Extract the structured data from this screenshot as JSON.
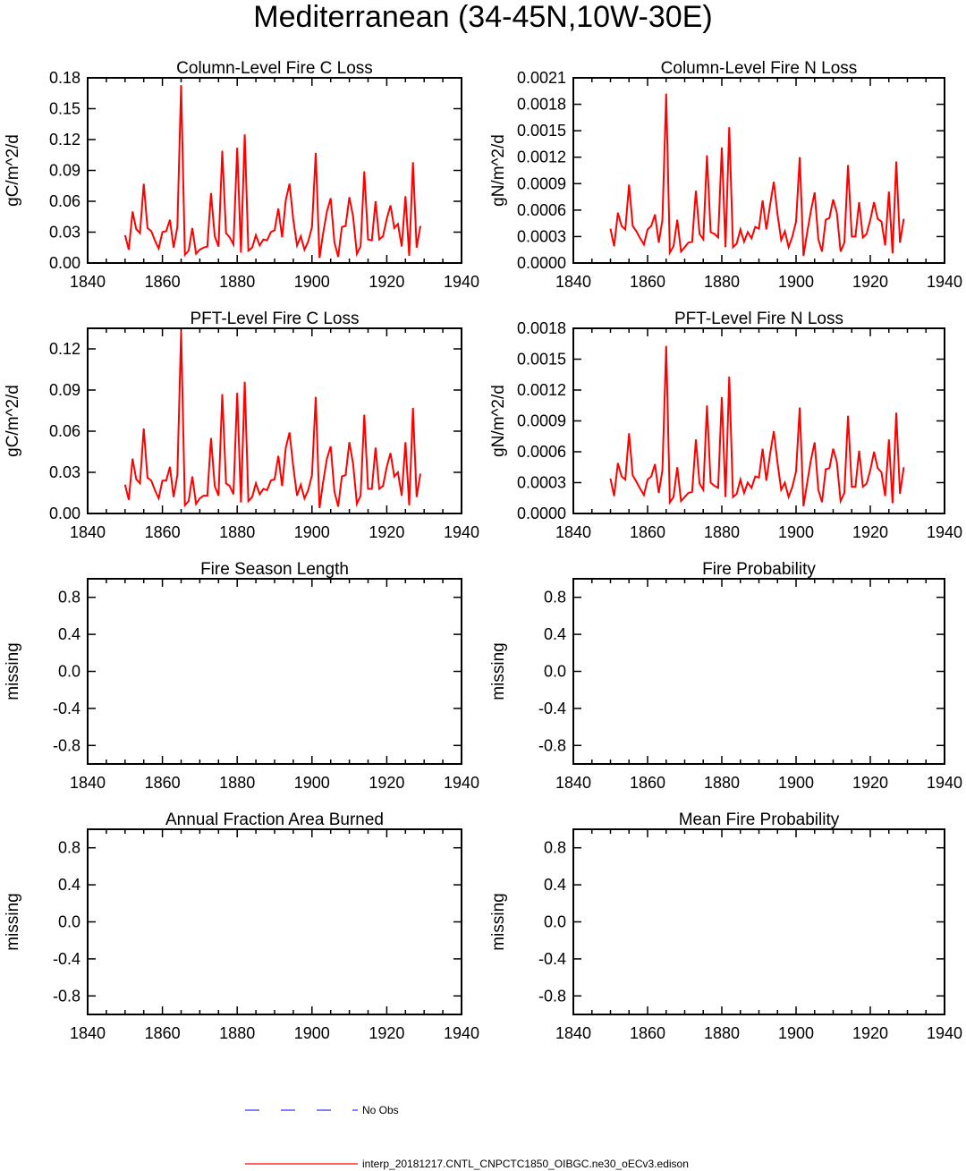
{
  "figure": {
    "title": "Mediterranean (34-45N,10W-30E)"
  },
  "legend": {
    "entries": [
      {
        "label": "No Obs",
        "color": "#3333ff",
        "style": "dashed"
      },
      {
        "label": "interp_20181217.CNTL_CNPCTC1850_OIBGC.ne30_oECv3.edison",
        "color": "#ff0000",
        "style": "solid"
      }
    ]
  },
  "chart_data": [
    {
      "type": "line",
      "title": "Column-Level Fire C Loss",
      "ylabel": "gC/m^2/d",
      "xlim": [
        1840,
        1940
      ],
      "xticks": [
        "1840",
        "1860",
        "1880",
        "1900",
        "1920",
        "1940"
      ],
      "ylim": [
        0,
        0.18
      ],
      "yticks": [
        "0.00",
        "0.03",
        "0.06",
        "0.09",
        "0.12",
        "0.15",
        "0.18"
      ],
      "series": [
        {
          "color": "#ff0000",
          "x": [
            1850,
            1851,
            1852,
            1853,
            1854,
            1855,
            1856,
            1857,
            1858,
            1859,
            1860,
            1861,
            1862,
            1863,
            1864,
            1865,
            1866,
            1867,
            1868,
            1869,
            1870,
            1871,
            1872,
            1873,
            1874,
            1875,
            1876,
            1877,
            1878,
            1879,
            1880,
            1881,
            1882,
            1883,
            1884,
            1885,
            1886,
            1887,
            1888,
            1889,
            1890,
            1891,
            1892,
            1893,
            1894,
            1895,
            1896,
            1897,
            1898,
            1899,
            1900,
            1901,
            1902,
            1903,
            1904,
            1905,
            1906,
            1907,
            1908,
            1909,
            1910,
            1911,
            1912,
            1913,
            1914,
            1915,
            1916,
            1917,
            1918,
            1919,
            1920,
            1921,
            1922,
            1923,
            1924,
            1925,
            1926,
            1927,
            1928,
            1929
          ],
          "y": [
            0.027,
            0.013,
            0.05,
            0.033,
            0.029,
            0.077,
            0.034,
            0.031,
            0.022,
            0.014,
            0.03,
            0.031,
            0.042,
            0.015,
            0.035,
            0.173,
            0.008,
            0.012,
            0.034,
            0.009,
            0.013,
            0.015,
            0.016,
            0.068,
            0.026,
            0.016,
            0.109,
            0.029,
            0.025,
            0.018,
            0.112,
            0.01,
            0.125,
            0.012,
            0.015,
            0.027,
            0.017,
            0.023,
            0.022,
            0.03,
            0.032,
            0.053,
            0.025,
            0.061,
            0.077,
            0.042,
            0.017,
            0.026,
            0.013,
            0.021,
            0.035,
            0.107,
            0.005,
            0.029,
            0.05,
            0.063,
            0.02,
            0.006,
            0.035,
            0.036,
            0.064,
            0.045,
            0.009,
            0.016,
            0.089,
            0.023,
            0.022,
            0.06,
            0.023,
            0.026,
            0.043,
            0.056,
            0.034,
            0.038,
            0.016,
            0.065,
            0.007,
            0.098,
            0.015,
            0.036
          ]
        }
      ]
    },
    {
      "type": "line",
      "title": "Column-Level Fire N Loss",
      "ylabel": "gN/m^2/d",
      "xlim": [
        1840,
        1940
      ],
      "xticks": [
        "1840",
        "1860",
        "1880",
        "1900",
        "1920",
        "1940"
      ],
      "ylim": [
        0,
        0.0021
      ],
      "yticks": [
        "0.0000",
        "0.0003",
        "0.0006",
        "0.0009",
        "0.0012",
        "0.0015",
        "0.0018",
        "0.0021"
      ],
      "series": [
        {
          "color": "#ff0000",
          "x": [
            1850,
            1851,
            1852,
            1853,
            1854,
            1855,
            1856,
            1857,
            1858,
            1859,
            1860,
            1861,
            1862,
            1863,
            1864,
            1865,
            1866,
            1867,
            1868,
            1869,
            1870,
            1871,
            1872,
            1873,
            1874,
            1875,
            1876,
            1877,
            1878,
            1879,
            1880,
            1881,
            1882,
            1883,
            1884,
            1885,
            1886,
            1887,
            1888,
            1889,
            1890,
            1891,
            1892,
            1893,
            1894,
            1895,
            1896,
            1897,
            1898,
            1899,
            1900,
            1901,
            1902,
            1903,
            1904,
            1905,
            1906,
            1907,
            1908,
            1909,
            1910,
            1911,
            1912,
            1913,
            1914,
            1915,
            1916,
            1917,
            1918,
            1919,
            1920,
            1921,
            1922,
            1923,
            1924,
            1925,
            1926,
            1927,
            1928,
            1929
          ],
          "y": [
            0.00039,
            0.00019,
            0.00057,
            0.00042,
            0.00038,
            0.00089,
            0.00042,
            0.00036,
            0.00028,
            0.00021,
            0.00038,
            0.00042,
            0.00055,
            0.00023,
            0.00049,
            0.00192,
            0.00012,
            0.00019,
            0.00049,
            0.00013,
            0.00018,
            0.00023,
            0.00024,
            0.00082,
            0.00033,
            0.00027,
            0.00122,
            0.00035,
            0.00033,
            0.00029,
            0.00131,
            0.00018,
            0.00154,
            0.00018,
            0.00022,
            0.00038,
            0.00024,
            0.00035,
            0.00028,
            0.00041,
            0.00039,
            0.00071,
            0.00038,
            0.00066,
            0.00092,
            0.00055,
            0.00026,
            0.00036,
            0.00018,
            0.0003,
            0.00047,
            0.0012,
            8e-05,
            0.00035,
            0.00059,
            0.0008,
            0.00027,
            0.00013,
            0.00049,
            0.00051,
            0.00072,
            0.00057,
            0.00013,
            0.00023,
            0.00111,
            0.0003,
            0.0003,
            0.00069,
            0.00029,
            0.00033,
            0.00049,
            0.00069,
            0.0005,
            0.00047,
            0.0002,
            0.00081,
            0.00011,
            0.00115,
            0.00023,
            0.0005
          ]
        }
      ]
    },
    {
      "type": "line",
      "title": "PFT-Level Fire C Loss",
      "ylabel": "gC/m^2/d",
      "xlim": [
        1840,
        1940
      ],
      "xticks": [
        "1840",
        "1860",
        "1880",
        "1900",
        "1920",
        "1940"
      ],
      "ylim": [
        0,
        0.135
      ],
      "yticks": [
        "0.00",
        "0.03",
        "0.06",
        "0.09",
        "0.12"
      ],
      "series": [
        {
          "color": "#ff0000",
          "x": [
            1850,
            1851,
            1852,
            1853,
            1854,
            1855,
            1856,
            1857,
            1858,
            1859,
            1860,
            1861,
            1862,
            1863,
            1864,
            1865,
            1866,
            1867,
            1868,
            1869,
            1870,
            1871,
            1872,
            1873,
            1874,
            1875,
            1876,
            1877,
            1878,
            1879,
            1880,
            1881,
            1882,
            1883,
            1884,
            1885,
            1886,
            1887,
            1888,
            1889,
            1890,
            1891,
            1892,
            1893,
            1894,
            1895,
            1896,
            1897,
            1898,
            1899,
            1900,
            1901,
            1902,
            1903,
            1904,
            1905,
            1906,
            1907,
            1908,
            1909,
            1910,
            1911,
            1912,
            1913,
            1914,
            1915,
            1916,
            1917,
            1918,
            1919,
            1920,
            1921,
            1922,
            1923,
            1924,
            1925,
            1926,
            1927,
            1928,
            1929
          ],
          "y": [
            0.021,
            0.01,
            0.04,
            0.025,
            0.022,
            0.062,
            0.026,
            0.024,
            0.017,
            0.011,
            0.024,
            0.024,
            0.034,
            0.012,
            0.028,
            0.133,
            0.006,
            0.009,
            0.027,
            0.007,
            0.011,
            0.013,
            0.013,
            0.055,
            0.02,
            0.013,
            0.087,
            0.022,
            0.02,
            0.014,
            0.088,
            0.008,
            0.096,
            0.009,
            0.012,
            0.022,
            0.014,
            0.018,
            0.017,
            0.024,
            0.025,
            0.042,
            0.02,
            0.048,
            0.059,
            0.034,
            0.013,
            0.021,
            0.011,
            0.017,
            0.028,
            0.085,
            0.004,
            0.023,
            0.04,
            0.049,
            0.016,
            0.005,
            0.027,
            0.028,
            0.052,
            0.036,
            0.007,
            0.013,
            0.072,
            0.018,
            0.018,
            0.048,
            0.018,
            0.02,
            0.034,
            0.044,
            0.027,
            0.03,
            0.013,
            0.052,
            0.006,
            0.077,
            0.012,
            0.029
          ]
        }
      ]
    },
    {
      "type": "line",
      "title": "PFT-Level Fire N Loss",
      "ylabel": "gN/m^2/d",
      "xlim": [
        1840,
        1940
      ],
      "xticks": [
        "1840",
        "1860",
        "1880",
        "1900",
        "1920",
        "1940"
      ],
      "ylim": [
        0,
        0.0018
      ],
      "yticks": [
        "0.0000",
        "0.0003",
        "0.0006",
        "0.0009",
        "0.0012",
        "0.0015",
        "0.0018"
      ],
      "series": [
        {
          "color": "#ff0000",
          "x": [
            1850,
            1851,
            1852,
            1853,
            1854,
            1855,
            1856,
            1857,
            1858,
            1859,
            1860,
            1861,
            1862,
            1863,
            1864,
            1865,
            1866,
            1867,
            1868,
            1869,
            1870,
            1871,
            1872,
            1873,
            1874,
            1875,
            1876,
            1877,
            1878,
            1879,
            1880,
            1881,
            1882,
            1883,
            1884,
            1885,
            1886,
            1887,
            1888,
            1889,
            1890,
            1891,
            1892,
            1893,
            1894,
            1895,
            1896,
            1897,
            1898,
            1899,
            1900,
            1901,
            1902,
            1903,
            1904,
            1905,
            1906,
            1907,
            1908,
            1909,
            1910,
            1911,
            1912,
            1913,
            1914,
            1915,
            1916,
            1917,
            1918,
            1919,
            1920,
            1921,
            1922,
            1923,
            1924,
            1925,
            1926,
            1927,
            1928,
            1929
          ],
          "y": [
            0.00034,
            0.00017,
            0.00049,
            0.00036,
            0.00033,
            0.00078,
            0.00037,
            0.00031,
            0.00024,
            0.00018,
            0.00033,
            0.00036,
            0.00048,
            0.0002,
            0.00042,
            0.00163,
            0.00011,
            0.00016,
            0.00045,
            0.00012,
            0.00016,
            0.0002,
            0.00021,
            0.00072,
            0.00029,
            0.00023,
            0.00105,
            0.0003,
            0.00027,
            0.00025,
            0.00113,
            0.00016,
            0.00133,
            0.00016,
            0.00019,
            0.00033,
            0.0002,
            0.0003,
            0.00025,
            0.00036,
            0.00035,
            0.00063,
            0.00032,
            0.00058,
            0.0008,
            0.00049,
            0.00023,
            0.0003,
            0.00016,
            0.00026,
            0.00041,
            0.00103,
            7e-05,
            0.0003,
            0.00052,
            0.00069,
            0.00023,
            0.00011,
            0.00043,
            0.00044,
            0.00063,
            0.0005,
            0.00012,
            0.0002,
            0.00095,
            0.00026,
            0.00026,
            0.00061,
            0.00026,
            0.00029,
            0.00042,
            0.0006,
            0.00044,
            0.0004,
            0.00017,
            0.00072,
            0.0001,
            0.00098,
            0.00019,
            0.00045
          ]
        }
      ]
    },
    {
      "type": "line",
      "title": "Fire Season Length",
      "ylabel": "missing",
      "xlim": [
        1840,
        1940
      ],
      "xticks": [
        "1840",
        "1860",
        "1880",
        "1900",
        "1920",
        "1940"
      ],
      "ylim": [
        -1,
        1
      ],
      "yticks": [
        "-0.8",
        "-0.4",
        "0.0",
        "0.4",
        "0.8"
      ],
      "series": []
    },
    {
      "type": "line",
      "title": "Fire Probability",
      "ylabel": "missing",
      "xlim": [
        1840,
        1940
      ],
      "xticks": [
        "1840",
        "1860",
        "1880",
        "1900",
        "1920",
        "1940"
      ],
      "ylim": [
        -1,
        1
      ],
      "yticks": [
        "-0.8",
        "-0.4",
        "0.0",
        "0.4",
        "0.8"
      ],
      "series": []
    },
    {
      "type": "line",
      "title": "Annual Fraction Area Burned",
      "ylabel": "missing",
      "xlim": [
        1840,
        1940
      ],
      "xticks": [
        "1840",
        "1860",
        "1880",
        "1900",
        "1920",
        "1940"
      ],
      "ylim": [
        -1,
        1
      ],
      "yticks": [
        "-0.8",
        "-0.4",
        "0.0",
        "0.4",
        "0.8"
      ],
      "series": []
    },
    {
      "type": "line",
      "title": "Mean Fire Probability",
      "ylabel": "missing",
      "xlim": [
        1840,
        1940
      ],
      "xticks": [
        "1840",
        "1860",
        "1880",
        "1900",
        "1920",
        "1940"
      ],
      "ylim": [
        -1,
        1
      ],
      "yticks": [
        "-0.8",
        "-0.4",
        "0.0",
        "0.4",
        "0.8"
      ],
      "series": []
    }
  ]
}
